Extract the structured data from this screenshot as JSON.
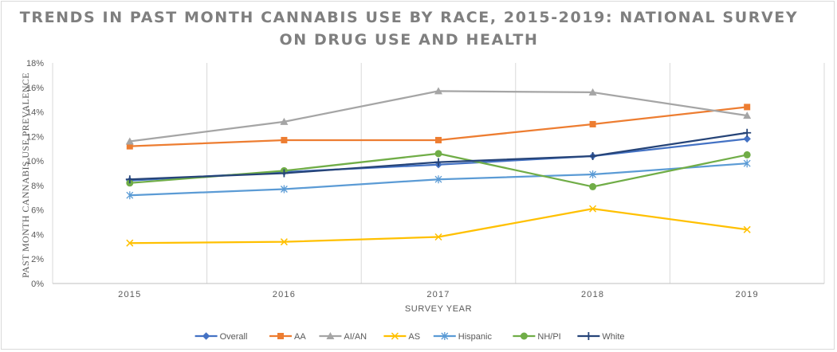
{
  "chart_data": {
    "type": "line",
    "title_lines": [
      "TRENDS IN PAST MONTH CANNABIS USE BY RACE, 2015-2019: NATIONAL SURVEY",
      "ON DRUG USE AND HEALTH"
    ],
    "xlabel": "SURVEY YEAR",
    "ylabel": "PAST MONTH CANNABIS USE  PREVALENCE",
    "categories": [
      "2015",
      "2016",
      "2017",
      "2018",
      "2019"
    ],
    "ylim": [
      0,
      18
    ],
    "y_ticks": [
      0,
      2,
      4,
      6,
      8,
      10,
      12,
      14,
      16,
      18
    ],
    "y_tick_labels": [
      "0%",
      "2%",
      "4%",
      "6%",
      "8%",
      "10%",
      "12%",
      "14%",
      "16%",
      "18%"
    ],
    "grid": "vertical",
    "legend_position": "bottom",
    "series": [
      {
        "name": "Overall",
        "color": "#4472c4",
        "marker": "diamond",
        "values": [
          8.4,
          9.1,
          9.7,
          10.4,
          11.8
        ]
      },
      {
        "name": "AA",
        "color": "#ed7d31",
        "marker": "square",
        "values": [
          11.2,
          11.7,
          11.7,
          13.0,
          14.4
        ]
      },
      {
        "name": "AI/AN",
        "color": "#a5a5a5",
        "marker": "triangle",
        "values": [
          11.6,
          13.2,
          15.7,
          15.6,
          13.7
        ]
      },
      {
        "name": "AS",
        "color": "#ffc000",
        "marker": "x",
        "values": [
          3.3,
          3.4,
          3.8,
          6.1,
          4.4
        ]
      },
      {
        "name": "Hispanic",
        "color": "#5b9bd5",
        "marker": "asterisk",
        "values": [
          7.2,
          7.7,
          8.5,
          8.9,
          9.8
        ]
      },
      {
        "name": "NH/PI",
        "color": "#70ad47",
        "marker": "circle",
        "values": [
          8.2,
          9.2,
          10.6,
          7.9,
          10.5
        ]
      },
      {
        "name": "White",
        "color": "#264478",
        "marker": "plus",
        "values": [
          8.5,
          9.0,
          9.9,
          10.4,
          12.3
        ]
      }
    ]
  }
}
